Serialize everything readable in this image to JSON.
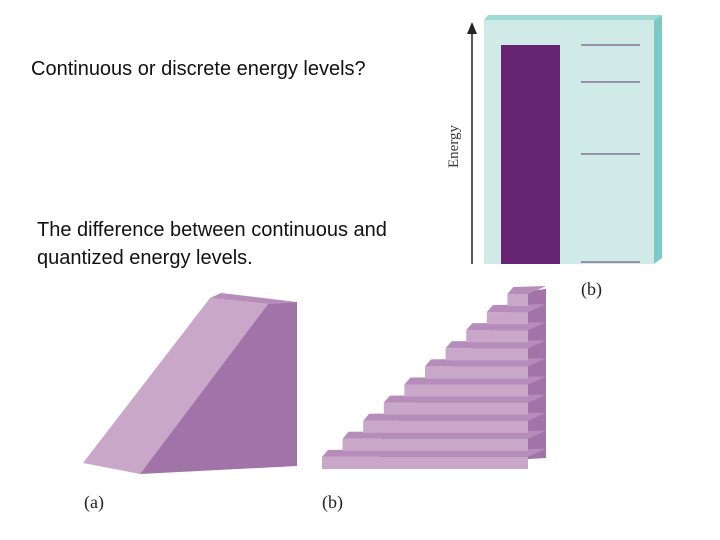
{
  "slide": {
    "title": "Continuous or discrete energy levels?",
    "body": "The difference between continuous and quantized energy levels."
  },
  "energy_diagram": {
    "axis_label": "Energy",
    "panel_label": "(b)",
    "colors": {
      "panel": "#cfeae7",
      "panel_edge": "#7fc9c4",
      "band": "#672473",
      "level_line": "#7c5a86"
    }
  },
  "ramp_stairs_figure": {
    "ramp_label": "(a)",
    "stairs_label": "(b)",
    "colors": {
      "front": "#c9a7c9",
      "side": "#a273a8",
      "top": "#b68cba"
    }
  }
}
